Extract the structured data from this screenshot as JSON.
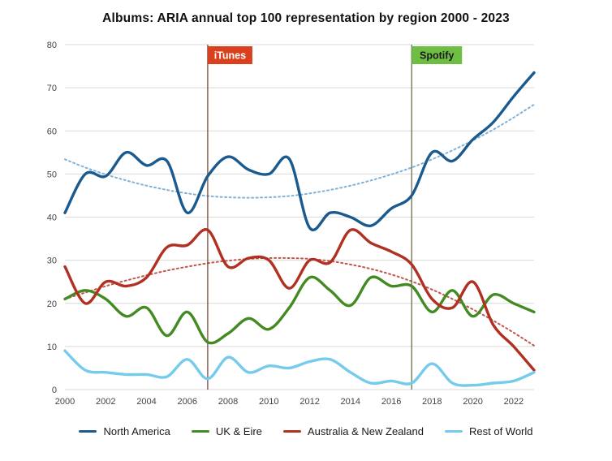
{
  "chart_data": {
    "type": "line",
    "title": "Albums: ARIA annual top 100 representation by region 2000 - 2023",
    "x": [
      2000,
      2001,
      2002,
      2003,
      2004,
      2005,
      2006,
      2007,
      2008,
      2009,
      2010,
      2011,
      2012,
      2013,
      2014,
      2015,
      2016,
      2017,
      2018,
      2019,
      2020,
      2021,
      2022,
      2023
    ],
    "x_tick_labels": [
      2000,
      2002,
      2004,
      2006,
      2008,
      2010,
      2012,
      2014,
      2016,
      2018,
      2020,
      2022
    ],
    "ylim": [
      0,
      80
    ],
    "y_ticks": [
      0,
      10,
      20,
      30,
      40,
      50,
      60,
      70,
      80
    ],
    "grid": "horizontal",
    "grid_color": "#d9d9d9",
    "legend_position": "bottom",
    "series": [
      {
        "name": "North America",
        "color": "#1b5a8e",
        "values": [
          41,
          50,
          49.5,
          55,
          52,
          53,
          41,
          49.5,
          54,
          51,
          50,
          53.5,
          37.5,
          41,
          40,
          38,
          42,
          45,
          55,
          53,
          58,
          62,
          68,
          73.5
        ]
      },
      {
        "name": "UK & Eire",
        "color": "#438a22",
        "values": [
          21,
          23,
          21,
          17,
          19,
          12.5,
          18,
          11,
          13,
          16.5,
          14,
          19,
          26,
          23,
          19.5,
          26,
          24,
          24,
          18,
          23,
          17,
          22,
          20,
          18
        ]
      },
      {
        "name": "Australia & New Zealand",
        "color": "#b03022",
        "values": [
          28.5,
          20,
          25,
          24,
          26,
          33,
          33.5,
          37,
          28.5,
          30.5,
          30,
          23.5,
          30,
          29.5,
          37,
          34,
          32,
          29,
          21,
          19,
          25,
          15,
          10,
          4.5
        ]
      },
      {
        "name": "Rest of World",
        "color": "#74cbec",
        "values": [
          9,
          4.5,
          4,
          3.5,
          3.5,
          3,
          7,
          2.5,
          7.5,
          4,
          5.5,
          5,
          6.5,
          7,
          4,
          1.5,
          2,
          1.5,
          6,
          1.5,
          1,
          1.5,
          2,
          4
        ]
      }
    ],
    "trend_series": [
      {
        "name": "North America trend",
        "color": "#7fb2d9",
        "style": "dotted",
        "values": [
          53.4,
          51.5,
          49.9,
          48.5,
          47.3,
          46.3,
          45.5,
          44.9,
          44.6,
          44.5,
          44.6,
          44.9,
          45.5,
          46.3,
          47.3,
          48.5,
          49.9,
          51.5,
          53.4,
          55.5,
          57.8,
          60.3,
          63.1,
          66.1
        ]
      },
      {
        "name": "Australia & New Zealand trend",
        "color": "#c2564a",
        "style": "dotted",
        "values": [
          21,
          22.5,
          24,
          25.3,
          26.5,
          27.6,
          28.5,
          29.3,
          29.9,
          30.3,
          30.5,
          30.5,
          30.3,
          29.8,
          29,
          28,
          26.7,
          25.1,
          23.2,
          21,
          18.6,
          16,
          13.2,
          10.2
        ]
      }
    ],
    "annotations": [
      {
        "label": "iTunes",
        "x": 2007,
        "box_color": "#d9411e",
        "text_color": "#ffffff",
        "line_color": "#7d4a3a"
      },
      {
        "label": "Spotify",
        "x": 2017,
        "box_color": "#6fbe44",
        "text_color": "#1a1a1a",
        "line_color": "#6f6a45"
      }
    ]
  }
}
